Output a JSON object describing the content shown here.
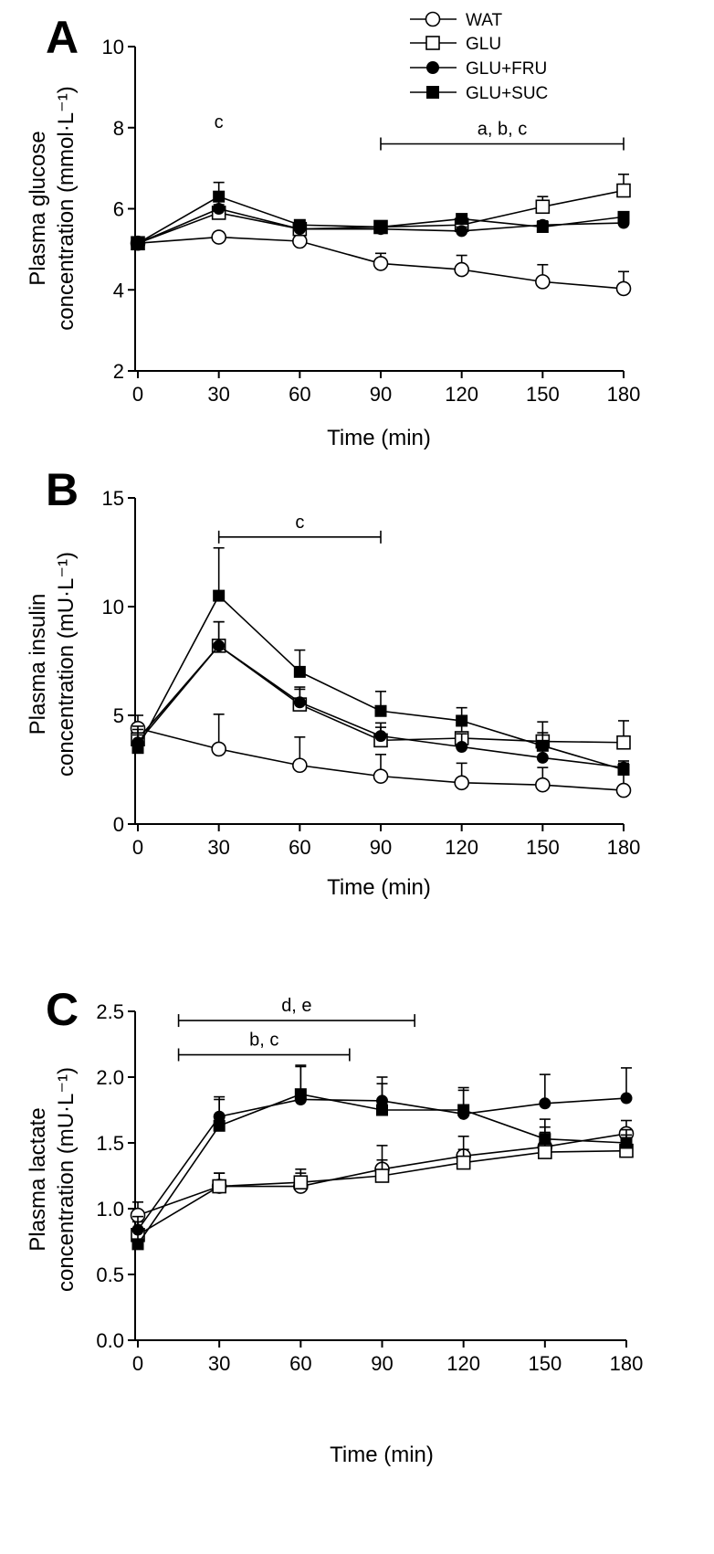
{
  "legend": [
    {
      "label": "WAT",
      "marker": "circle-open"
    },
    {
      "label": "GLU",
      "marker": "square-open"
    },
    {
      "label": "GLU+FRU",
      "marker": "circle-filled"
    },
    {
      "label": "GLU+SUC",
      "marker": "square-filled"
    }
  ],
  "colors": {
    "line": "#000000",
    "open_fill": "#ffffff",
    "filled": "#000000"
  },
  "chart_data": [
    {
      "type": "line",
      "panel": "A",
      "xlabel": "Time (min)",
      "ylabel_lines": [
        "Plasma glucose",
        "concentration (mmol·L⁻¹)"
      ],
      "x": [
        0,
        30,
        60,
        90,
        120,
        150,
        180
      ],
      "xticks": [
        0,
        30,
        60,
        90,
        120,
        150,
        180
      ],
      "yticks": [
        2,
        4,
        6,
        8,
        10
      ],
      "ytick_labels": [
        "2",
        "4",
        "6",
        "8",
        "10"
      ],
      "xlim": [
        0,
        180
      ],
      "ylim": [
        2,
        10
      ],
      "annotations": [
        {
          "text": "c",
          "x": 30,
          "y": 8.0
        },
        {
          "text": "a, b, c",
          "x1": 90,
          "x2": 180,
          "y": 7.6
        }
      ],
      "series": [
        {
          "name": "WAT",
          "marker": "circle-open",
          "values": [
            5.15,
            5.3,
            5.2,
            4.65,
            4.5,
            4.2,
            4.03
          ],
          "errors": [
            0.08,
            0.12,
            0.08,
            0.25,
            0.35,
            0.42,
            0.42
          ]
        },
        {
          "name": "GLU",
          "marker": "square-open",
          "values": [
            5.15,
            5.9,
            5.5,
            5.55,
            5.6,
            6.05,
            6.45
          ],
          "errors": [
            0.08,
            0.2,
            0.12,
            0.12,
            0.12,
            0.25,
            0.4
          ]
        },
        {
          "name": "GLU+FRU",
          "marker": "circle-filled",
          "values": [
            5.15,
            6.0,
            5.5,
            5.5,
            5.45,
            5.6,
            5.65
          ],
          "errors": [
            0.08,
            0.2,
            0.1,
            0.1,
            0.1,
            0.1,
            0.12
          ]
        },
        {
          "name": "GLU+SUC",
          "marker": "square-filled",
          "values": [
            5.15,
            6.3,
            5.6,
            5.55,
            5.75,
            5.55,
            5.8
          ],
          "errors": [
            0.08,
            0.35,
            0.1,
            0.1,
            0.12,
            0.12,
            0.12
          ]
        }
      ]
    },
    {
      "type": "line",
      "panel": "B",
      "xlabel": "Time (min)",
      "ylabel_lines": [
        "Plasma insulin",
        "concentration (mU·L⁻¹)"
      ],
      "x": [
        0,
        30,
        60,
        90,
        120,
        150,
        180
      ],
      "xticks": [
        0,
        30,
        60,
        90,
        120,
        150,
        180
      ],
      "yticks": [
        0,
        5,
        10,
        15
      ],
      "ytick_labels": [
        "0",
        "5",
        "10",
        "15"
      ],
      "xlim": [
        0,
        180
      ],
      "ylim": [
        0,
        15
      ],
      "annotations": [
        {
          "text": "c",
          "x1": 30,
          "x2": 90,
          "y": 13.2
        }
      ],
      "series": [
        {
          "name": "WAT",
          "marker": "circle-open",
          "values": [
            4.4,
            3.45,
            2.7,
            2.2,
            1.9,
            1.8,
            1.55
          ],
          "errors": [
            0.6,
            1.6,
            1.3,
            1.0,
            0.9,
            0.8,
            0.8
          ]
        },
        {
          "name": "GLU",
          "marker": "square-open",
          "values": [
            3.9,
            8.2,
            5.5,
            3.85,
            3.95,
            3.8,
            3.75
          ],
          "errors": [
            0.6,
            1.1,
            0.7,
            0.6,
            0.6,
            0.9,
            1.0
          ]
        },
        {
          "name": "GLU+FRU",
          "marker": "circle-filled",
          "values": [
            3.75,
            8.2,
            5.6,
            4.05,
            3.55,
            3.05,
            2.6
          ],
          "errors": [
            0.6,
            1.1,
            0.7,
            0.6,
            0.6,
            0.6,
            0.3
          ]
        },
        {
          "name": "GLU+SUC",
          "marker": "square-filled",
          "values": [
            3.5,
            10.5,
            7.0,
            5.2,
            4.75,
            3.6,
            2.5
          ],
          "errors": [
            0.6,
            2.2,
            1.0,
            0.9,
            0.6,
            0.6,
            0.3
          ]
        }
      ]
    },
    {
      "type": "line",
      "panel": "C",
      "xlabel": "Time (min)",
      "ylabel_lines": [
        "Plasma lactate",
        "concentration (mU·L⁻¹)"
      ],
      "x": [
        0,
        30,
        60,
        90,
        120,
        150,
        180
      ],
      "xticks": [
        0,
        30,
        60,
        90,
        120,
        150,
        180
      ],
      "yticks": [
        0,
        0.5,
        1.0,
        1.5,
        2.0,
        2.5
      ],
      "ytick_labels": [
        "0.0",
        "0.5",
        "1.0",
        "1.5",
        "2.0",
        "2.5"
      ],
      "xlim": [
        0,
        180
      ],
      "ylim": [
        0,
        2.5
      ],
      "annotations": [
        {
          "text": "d, e",
          "x1": 15,
          "x2": 102,
          "y": 2.43
        },
        {
          "text": "b, c",
          "x1": 15,
          "x2": 78,
          "y": 2.17
        }
      ],
      "series": [
        {
          "name": "WAT",
          "marker": "circle-open",
          "values": [
            0.95,
            1.17,
            1.17,
            1.3,
            1.4,
            1.47,
            1.57
          ],
          "errors": [
            0.1,
            0.1,
            0.1,
            0.18,
            0.15,
            0.15,
            0.1
          ]
        },
        {
          "name": "GLU",
          "marker": "square-open",
          "values": [
            0.8,
            1.17,
            1.2,
            1.25,
            1.35,
            1.43,
            1.44
          ],
          "errors": [
            0.1,
            0.1,
            0.1,
            0.12,
            0.1,
            0.15,
            0.12
          ]
        },
        {
          "name": "GLU+FRU",
          "marker": "circle-filled",
          "values": [
            0.84,
            1.7,
            1.83,
            1.82,
            1.72,
            1.8,
            1.84
          ],
          "errors": [
            0.1,
            0.15,
            0.25,
            0.18,
            0.2,
            0.22,
            0.23
          ]
        },
        {
          "name": "GLU+SUC",
          "marker": "square-filled",
          "values": [
            0.73,
            1.63,
            1.87,
            1.75,
            1.75,
            1.53,
            1.5
          ],
          "errors": [
            0.1,
            0.2,
            0.22,
            0.2,
            0.15,
            0.15,
            0.1
          ]
        }
      ]
    }
  ]
}
